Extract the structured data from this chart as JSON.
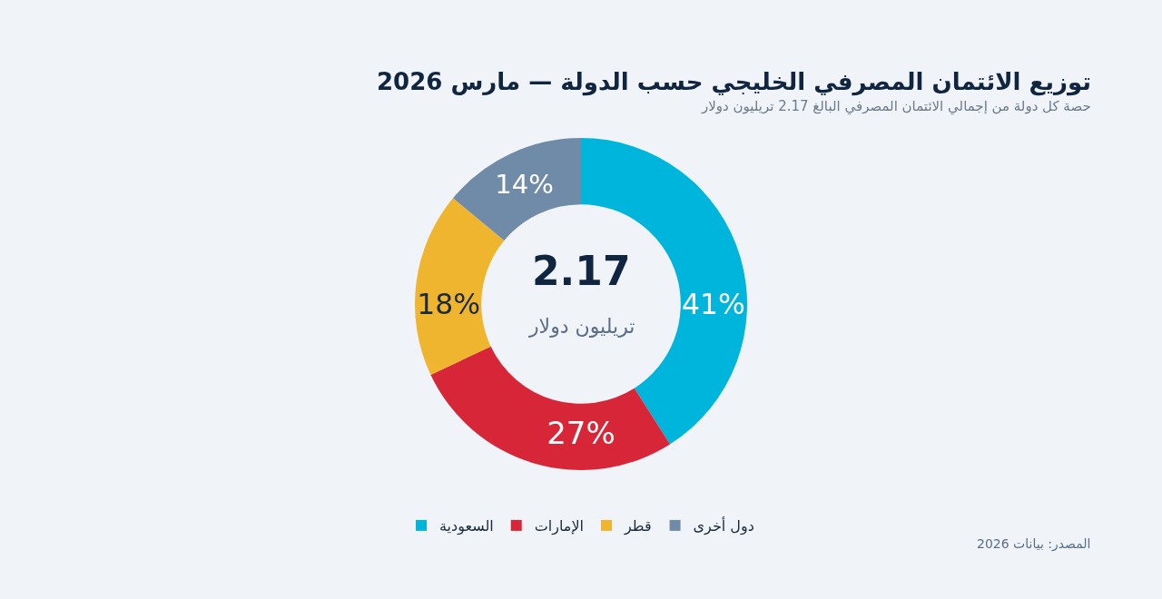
{
  "chart_data": {
    "type": "donut",
    "title": "توزيع الائتمان المصرفي الخليجي حسب الدولة — مارس 2026",
    "subtitle": "حصة كل دولة من إجمالي الائتمان المصرفي البالغ 2.17 تريليون دولار",
    "categories": [
      "السعودية",
      "الإمارات",
      "قطر",
      "دول أخرى"
    ],
    "values": [
      41,
      27,
      18,
      14
    ],
    "value_labels": [
      "41%",
      "27%",
      "18%",
      "14%"
    ],
    "colors": [
      "#00b5dc",
      "#d72638",
      "#f0b52e",
      "#6f8ba8"
    ],
    "annotations": [
      "2.17",
      "تريليون دولار",
      "المصدر: بيانات 2026"
    ],
    "legend": "bottom"
  }
}
